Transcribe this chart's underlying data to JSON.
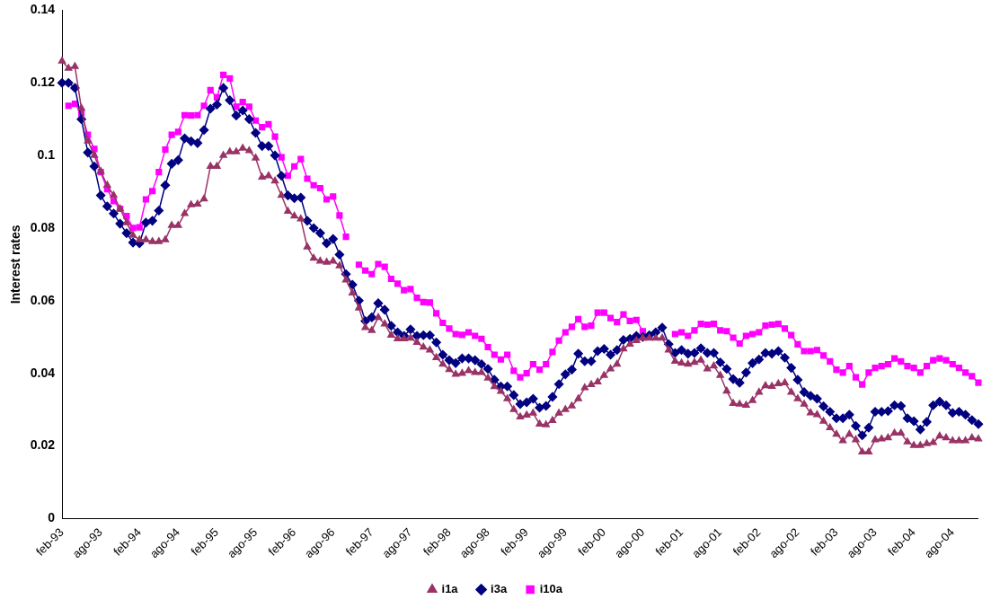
{
  "chart_data": {
    "type": "line",
    "ylabel": "Interest rates",
    "categories": [
      "feb-93",
      null,
      null,
      null,
      null,
      null,
      "ago-93",
      null,
      null,
      null,
      null,
      null,
      "feb-94",
      null,
      null,
      null,
      null,
      null,
      "ago-94",
      null,
      null,
      null,
      null,
      null,
      "feb-95",
      null,
      null,
      null,
      null,
      null,
      "ago-95",
      null,
      null,
      null,
      null,
      null,
      "feb-96",
      null,
      null,
      null,
      null,
      null,
      "ago-96",
      null,
      null,
      null,
      null,
      null,
      "feb-97",
      null,
      null,
      null,
      null,
      null,
      "ago-97",
      null,
      null,
      null,
      null,
      null,
      "feb-98",
      null,
      null,
      null,
      null,
      null,
      "ago-98",
      null,
      null,
      null,
      null,
      null,
      "feb-99",
      null,
      null,
      null,
      null,
      null,
      "ago-99",
      null,
      null,
      null,
      null,
      null,
      "feb-00",
      null,
      null,
      null,
      null,
      null,
      "ago-00",
      null,
      null,
      null,
      null,
      null,
      "feb-01",
      null,
      null,
      null,
      null,
      null,
      "ago-01",
      null,
      null,
      null,
      null,
      null,
      "feb-02",
      null,
      null,
      null,
      null,
      null,
      "ago-02",
      null,
      null,
      null,
      null,
      null,
      "feb-03",
      null,
      null,
      null,
      null,
      null,
      "ago-03",
      null,
      null,
      null,
      null,
      null,
      "feb-04",
      null,
      null,
      null,
      null,
      null,
      "ago-04",
      null,
      null,
      null,
      null
    ],
    "series": [
      {
        "name": "i1a",
        "color": "#993366",
        "marker": "triangle",
        "values": [
          0.126,
          0.124,
          0.1245,
          0.113,
          0.104,
          0.1,
          0.0956,
          0.0918,
          0.089,
          0.0853,
          0.0815,
          0.078,
          0.0768,
          0.0768,
          0.0763,
          0.0763,
          0.0768,
          0.0807,
          0.0807,
          0.084,
          0.0864,
          0.0866,
          0.088,
          0.097,
          0.097,
          0.1,
          0.101,
          0.101,
          0.102,
          0.1013,
          0.0993,
          0.094,
          0.0944,
          0.093,
          0.089,
          0.0846,
          0.0833,
          0.0825,
          0.0748,
          0.0717,
          0.0709,
          0.0706,
          0.0709,
          0.0696,
          0.0657,
          0.0621,
          0.058,
          0.0526,
          0.0518,
          0.0554,
          0.0536,
          0.0505,
          0.0495,
          0.0495,
          0.0497,
          0.0485,
          0.0472,
          0.0464,
          0.0443,
          0.0425,
          0.041,
          0.0397,
          0.04,
          0.0407,
          0.0402,
          0.0402,
          0.0387,
          0.0363,
          0.035,
          0.033,
          0.03,
          0.028,
          0.0285,
          0.029,
          0.026,
          0.0258,
          0.027,
          0.029,
          0.03,
          0.031,
          0.033,
          0.036,
          0.0369,
          0.0376,
          0.0394,
          0.0412,
          0.0425,
          0.0467,
          0.048,
          0.049,
          0.0497,
          0.0497,
          0.0497,
          0.0497,
          0.0464,
          0.0433,
          0.0428,
          0.0425,
          0.043,
          0.0436,
          0.0412,
          0.042,
          0.0394,
          0.0351,
          0.0317,
          0.0315,
          0.0312,
          0.0325,
          0.0348,
          0.0366,
          0.0364,
          0.0371,
          0.0374,
          0.0348,
          0.033,
          0.0315,
          0.0291,
          0.0286,
          0.0268,
          0.025,
          0.0232,
          0.0214,
          0.0232,
          0.0217,
          0.0183,
          0.0183,
          0.0217,
          0.0219,
          0.0222,
          0.0235,
          0.0235,
          0.0211,
          0.0201,
          0.0201,
          0.0206,
          0.0209,
          0.0227,
          0.0222,
          0.0214,
          0.0214,
          0.0214,
          0.0222,
          0.0219
        ]
      },
      {
        "name": "i3a",
        "color": "#000080",
        "marker": "diamond",
        "values": [
          0.12,
          0.12,
          0.1186,
          0.11,
          0.1008,
          0.097,
          0.089,
          0.086,
          0.084,
          0.0812,
          0.0786,
          0.076,
          0.0758,
          0.0815,
          0.082,
          0.0848,
          0.0918,
          0.0977,
          0.0987,
          0.1047,
          0.1039,
          0.1034,
          0.107,
          0.1129,
          0.114,
          0.1186,
          0.1152,
          0.111,
          0.1124,
          0.11,
          0.1062,
          0.1026,
          0.1026,
          0.1,
          0.0944,
          0.089,
          0.0882,
          0.0884,
          0.082,
          0.08,
          0.0786,
          0.0758,
          0.077,
          0.0727,
          0.0673,
          0.0644,
          0.06,
          0.0544,
          0.0554,
          0.0593,
          0.0575,
          0.0531,
          0.0513,
          0.0503,
          0.0521,
          0.0503,
          0.0505,
          0.0505,
          0.0485,
          0.0451,
          0.0436,
          0.0428,
          0.0441,
          0.0441,
          0.0436,
          0.0425,
          0.0412,
          0.0382,
          0.0364,
          0.0364,
          0.034,
          0.0315,
          0.032,
          0.033,
          0.0305,
          0.031,
          0.0335,
          0.037,
          0.0397,
          0.041,
          0.0454,
          0.0433,
          0.0433,
          0.0461,
          0.0467,
          0.0451,
          0.0464,
          0.0492,
          0.0495,
          0.0503,
          0.05,
          0.0505,
          0.0513,
          0.0526,
          0.048,
          0.0456,
          0.0464,
          0.0454,
          0.0456,
          0.0469,
          0.0456,
          0.0456,
          0.043,
          0.0412,
          0.0384,
          0.0374,
          0.0402,
          0.0428,
          0.0438,
          0.0456,
          0.0454,
          0.0461,
          0.0443,
          0.0415,
          0.0382,
          0.0348,
          0.0338,
          0.033,
          0.0309,
          0.0294,
          0.0276,
          0.0276,
          0.0286,
          0.0255,
          0.0229,
          0.025,
          0.0294,
          0.0294,
          0.0296,
          0.0312,
          0.031,
          0.0276,
          0.0268,
          0.0245,
          0.0266,
          0.0312,
          0.0322,
          0.0312,
          0.0291,
          0.0294,
          0.0286,
          0.0271,
          0.026
        ]
      },
      {
        "name": "i10a",
        "color": "#ff00ff",
        "marker": "square",
        "values": [
          null,
          0.1137,
          0.1142,
          0.1116,
          0.1057,
          0.1018,
          0.0954,
          0.0907,
          0.0874,
          0.0853,
          0.0833,
          0.08,
          0.0802,
          0.0879,
          0.0902,
          0.0954,
          0.1016,
          0.1057,
          0.1065,
          0.1111,
          0.111,
          0.1111,
          0.1137,
          0.118,
          0.116,
          0.1222,
          0.1212,
          0.1134,
          0.1147,
          0.1134,
          0.1096,
          0.1078,
          0.1086,
          0.1052,
          0.0995,
          0.0944,
          0.097,
          0.099,
          0.0936,
          0.0918,
          0.091,
          0.0879,
          0.0887,
          0.0835,
          0.0776,
          null,
          0.0699,
          0.0683,
          0.0673,
          0.0701,
          0.0693,
          0.066,
          0.0647,
          0.0629,
          0.0632,
          0.0608,
          0.0596,
          0.0595,
          0.0565,
          0.0539,
          0.0523,
          0.0508,
          0.0506,
          0.0513,
          0.0503,
          0.0495,
          0.0472,
          0.0451,
          0.0438,
          0.0451,
          0.0407,
          0.0389,
          0.04,
          0.0425,
          0.041,
          0.0425,
          0.0459,
          0.049,
          0.0513,
          0.0528,
          0.0549,
          0.0528,
          0.0531,
          0.0567,
          0.0567,
          0.0552,
          0.0541,
          0.0562,
          0.0544,
          0.0547,
          0.0516,
          null,
          null,
          null,
          null,
          0.0508,
          0.0513,
          0.0503,
          0.0518,
          0.0536,
          0.0534,
          0.0536,
          0.0518,
          0.0516,
          0.0498,
          0.0482,
          0.0503,
          0.0508,
          0.0513,
          0.0531,
          0.0534,
          0.0536,
          0.0523,
          0.0505,
          0.048,
          0.0461,
          0.0461,
          0.0464,
          0.0449,
          0.0433,
          0.041,
          0.0402,
          0.042,
          0.0389,
          0.0369,
          0.0402,
          0.0415,
          0.042,
          0.0425,
          0.0441,
          0.0433,
          0.042,
          0.0415,
          0.0402,
          0.042,
          0.0436,
          0.0441,
          0.0436,
          0.0425,
          0.0415,
          0.0402,
          0.0392,
          0.0374
        ]
      }
    ],
    "ylim": [
      0,
      0.14
    ],
    "yticks": [
      0,
      0.02,
      0.04,
      0.06,
      0.08,
      0.1,
      0.12,
      0.14
    ],
    "grid": false,
    "legend": "bottom",
    "line_style": "solid"
  }
}
